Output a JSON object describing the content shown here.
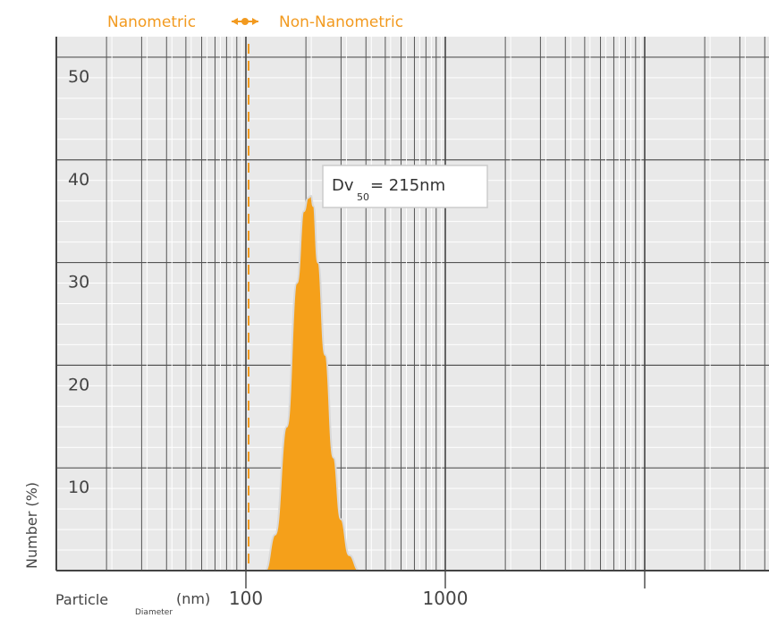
{
  "header": {
    "left_label": "Nanometric",
    "right_label": "Non-Nanometric",
    "color": "#f29a1f"
  },
  "chart_data": {
    "type": "area",
    "ylabel": "Number (%)",
    "xlabel": "Particle",
    "xlabel_subscript": "Diameter",
    "xlabel_unit": "(nm)",
    "x_scale": "log",
    "xlim": [
      22,
      12000
    ],
    "ylim": [
      0,
      52
    ],
    "x_ticks": [
      {
        "value": 100,
        "label": "100"
      },
      {
        "value": 1000,
        "label": "1000"
      }
    ],
    "y_ticks": [
      {
        "value": 10,
        "label": "10"
      },
      {
        "value": 20,
        "label": "20"
      },
      {
        "value": 30,
        "label": "30"
      },
      {
        "value": 40,
        "label": "40"
      },
      {
        "value": 50,
        "label": "50"
      }
    ],
    "grid": true,
    "boundary_x": 100,
    "fill_color": "#f5a01a",
    "background_color": "#e9e9e9",
    "series": [
      {
        "x": [
          125,
          140,
          160,
          180,
          195,
          205,
          212,
          218,
          230,
          250,
          275,
          300,
          330,
          370
        ],
        "values": [
          0,
          3.5,
          14,
          28,
          35,
          36.3,
          36.5,
          35.5,
          30,
          21,
          11,
          5,
          1.5,
          0
        ]
      }
    ],
    "annotation": {
      "prefix": "Dv",
      "subscript": "50",
      "suffix": " = 215nm",
      "x": 215,
      "y": 36.5
    }
  }
}
